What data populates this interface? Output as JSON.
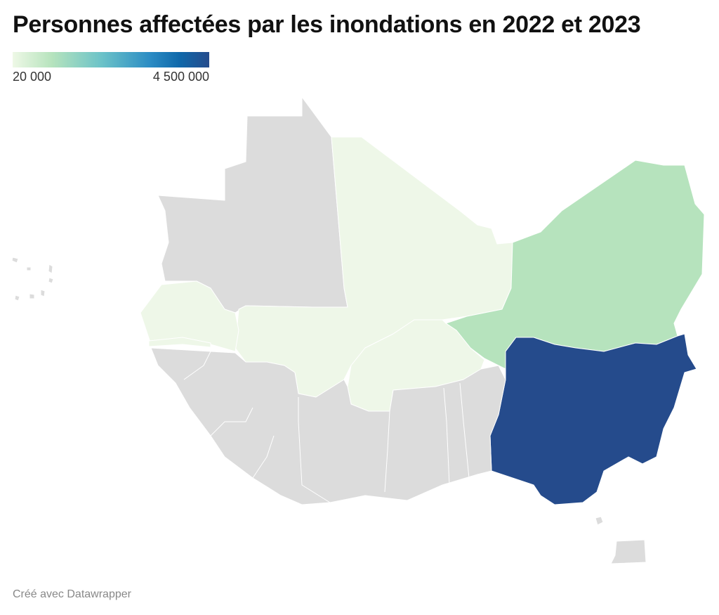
{
  "title": "Personnes affectées par les inondations en 2022 et 2023",
  "legend": {
    "min_label": "20 000",
    "max_label": "4 500 000",
    "min_value": 20000,
    "max_value": 4500000
  },
  "map": {
    "colors": {
      "no_data": "#dcdcdc",
      "low": "#eef7e8",
      "mid_low": "#b6e3bd",
      "high": "#254b8c"
    },
    "regions": {
      "mali": "low",
      "senegal": "low",
      "gambia": "low",
      "burkina-faso": "low",
      "niger": "mid_low",
      "nigeria": "high",
      "mauritania": "no_data",
      "coastal-west-africa": "no_data",
      "cape-verde": "no_data",
      "islands-gulf-of-guinea": "no_data"
    }
  },
  "footer": "Créé avec Datawrapper"
}
